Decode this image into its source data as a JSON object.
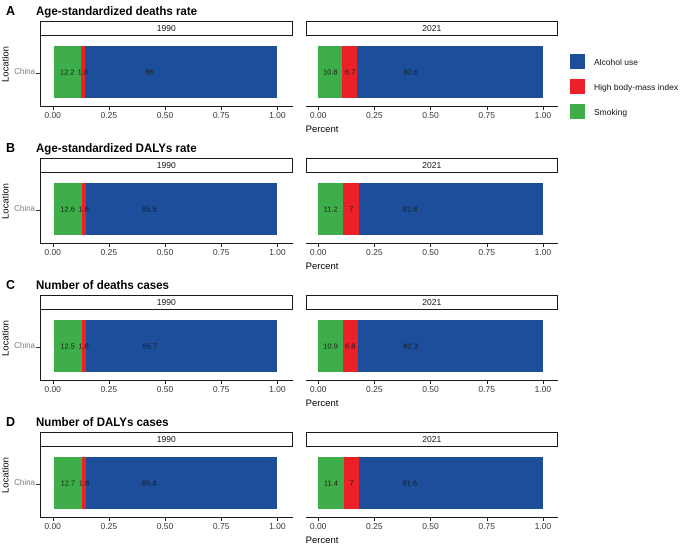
{
  "colors": {
    "alcohol_use": "#1D4E9C",
    "high_bmi": "#EC2028",
    "smoking": "#3DAE49"
  },
  "axis": {
    "x_ticks": [
      "0.00",
      "0.25",
      "0.50",
      "0.75",
      "1.00"
    ],
    "xlabel": "Percent",
    "ylabel": "Location",
    "y_tick_label": "China"
  },
  "legend": {
    "position": "right",
    "items": [
      {
        "label": "Alcohol use",
        "key": "alcohol_use"
      },
      {
        "label": "High body-mass index",
        "key": "high_bmi"
      },
      {
        "label": "Smoking",
        "key": "smoking"
      }
    ]
  },
  "chart_data": [
    {
      "type": "bar",
      "orientation": "horizontal",
      "stacked": true,
      "unit": "percent",
      "letter": "A",
      "title": "Age-standardized deaths rate",
      "xlabel": "Percent",
      "ylabel": "Location",
      "categories": [
        "China"
      ],
      "xlim": [
        0,
        1
      ],
      "x_ticks": [
        "0.00",
        "0.25",
        "0.50",
        "0.75",
        "1.00"
      ],
      "grid": false,
      "legend_position": "right",
      "facets": [
        {
          "year": "1990",
          "location": "China",
          "segments": [
            {
              "name": "Smoking",
              "key": "smoking",
              "value": 12.2,
              "label": "12.2",
              "label_x": 6.1
            },
            {
              "name": "High body-mass index",
              "key": "high_bmi",
              "value": 1.8,
              "label": "1.8",
              "label_x": 13.1
            },
            {
              "name": "Alcohol use",
              "key": "alcohol_use",
              "value": 86,
              "label": "86",
              "label_x": 43
            }
          ]
        },
        {
          "year": "2021",
          "location": "China",
          "segments": [
            {
              "name": "Smoking",
              "key": "smoking",
              "value": 10.8,
              "label": "10.8",
              "label_x": 5.4
            },
            {
              "name": "High body-mass index",
              "key": "high_bmi",
              "value": 6.7,
              "label": "6.7",
              "label_x": 14.2
            },
            {
              "name": "Alcohol use",
              "key": "alcohol_use",
              "value": 82.6,
              "label": "82.6",
              "label_x": 41.3
            }
          ]
        }
      ]
    },
    {
      "type": "bar",
      "orientation": "horizontal",
      "stacked": true,
      "unit": "percent",
      "letter": "B",
      "title": "Age-standardized DALYs rate",
      "xlabel": "Percent",
      "ylabel": "Location",
      "categories": [
        "China"
      ],
      "xlim": [
        0,
        1
      ],
      "x_ticks": [
        "0.00",
        "0.25",
        "0.50",
        "0.75",
        "1.00"
      ],
      "grid": false,
      "legend_position": "none",
      "facets": [
        {
          "year": "1990",
          "location": "China",
          "segments": [
            {
              "name": "Smoking",
              "key": "smoking",
              "value": 12.6,
              "label": "12.6",
              "label_x": 6.3
            },
            {
              "name": "High body-mass index",
              "key": "high_bmi",
              "value": 1.8,
              "label": "1.8",
              "label_x": 13.5
            },
            {
              "name": "Alcohol use",
              "key": "alcohol_use",
              "value": 85.5,
              "label": "85.5",
              "label_x": 42.8
            }
          ]
        },
        {
          "year": "2021",
          "location": "China",
          "segments": [
            {
              "name": "Smoking",
              "key": "smoking",
              "value": 11.2,
              "label": "11.2",
              "label_x": 5.6
            },
            {
              "name": "High body-mass index",
              "key": "high_bmi",
              "value": 7,
              "label": "7",
              "label_x": 14.7
            },
            {
              "name": "Alcohol use",
              "key": "alcohol_use",
              "value": 81.8,
              "label": "81.8",
              "label_x": 40.9
            }
          ]
        }
      ]
    },
    {
      "type": "bar",
      "orientation": "horizontal",
      "stacked": true,
      "unit": "percent",
      "letter": "C",
      "title": "Number of deaths cases",
      "xlabel": "Percent",
      "ylabel": "Location",
      "categories": [
        "China"
      ],
      "xlim": [
        0,
        1
      ],
      "x_ticks": [
        "0.00",
        "0.25",
        "0.50",
        "0.75",
        "1.00"
      ],
      "grid": false,
      "legend_position": "none",
      "facets": [
        {
          "year": "1990",
          "location": "China",
          "segments": [
            {
              "name": "Smoking",
              "key": "smoking",
              "value": 12.5,
              "label": "12.5",
              "label_x": 6.3
            },
            {
              "name": "High body-mass index",
              "key": "high_bmi",
              "value": 1.8,
              "label": "1.8",
              "label_x": 13.4
            },
            {
              "name": "Alcohol use",
              "key": "alcohol_use",
              "value": 85.7,
              "label": "85.7",
              "label_x": 42.9
            }
          ]
        },
        {
          "year": "2021",
          "location": "China",
          "segments": [
            {
              "name": "Smoking",
              "key": "smoking",
              "value": 10.9,
              "label": "10.9",
              "label_x": 5.5
            },
            {
              "name": "High body-mass index",
              "key": "high_bmi",
              "value": 6.8,
              "label": "6.8",
              "label_x": 14.3
            },
            {
              "name": "Alcohol use",
              "key": "alcohol_use",
              "value": 82.3,
              "label": "82.3",
              "label_x": 41.2
            }
          ]
        }
      ]
    },
    {
      "type": "bar",
      "orientation": "horizontal",
      "stacked": true,
      "unit": "percent",
      "letter": "D",
      "title": "Number of DALYs cases",
      "xlabel": "Percent",
      "ylabel": "Location",
      "categories": [
        "China"
      ],
      "xlim": [
        0,
        1
      ],
      "x_ticks": [
        "0.00",
        "0.25",
        "0.50",
        "0.75",
        "1.00"
      ],
      "grid": false,
      "legend_position": "none",
      "facets": [
        {
          "year": "1990",
          "location": "China",
          "segments": [
            {
              "name": "Smoking",
              "key": "smoking",
              "value": 12.7,
              "label": "12.7",
              "label_x": 6.4
            },
            {
              "name": "High body-mass index",
              "key": "high_bmi",
              "value": 1.8,
              "label": "1.8",
              "label_x": 13.6
            },
            {
              "name": "Alcohol use",
              "key": "alcohol_use",
              "value": 85.4,
              "label": "85.4",
              "label_x": 42.7
            }
          ]
        },
        {
          "year": "2021",
          "location": "China",
          "segments": [
            {
              "name": "Smoking",
              "key": "smoking",
              "value": 11.4,
              "label": "11.4",
              "label_x": 5.7
            },
            {
              "name": "High body-mass index",
              "key": "high_bmi",
              "value": 7,
              "label": "7",
              "label_x": 14.9
            },
            {
              "name": "Alcohol use",
              "key": "alcohol_use",
              "value": 81.6,
              "label": "81.6",
              "label_x": 40.8
            }
          ]
        }
      ]
    }
  ]
}
